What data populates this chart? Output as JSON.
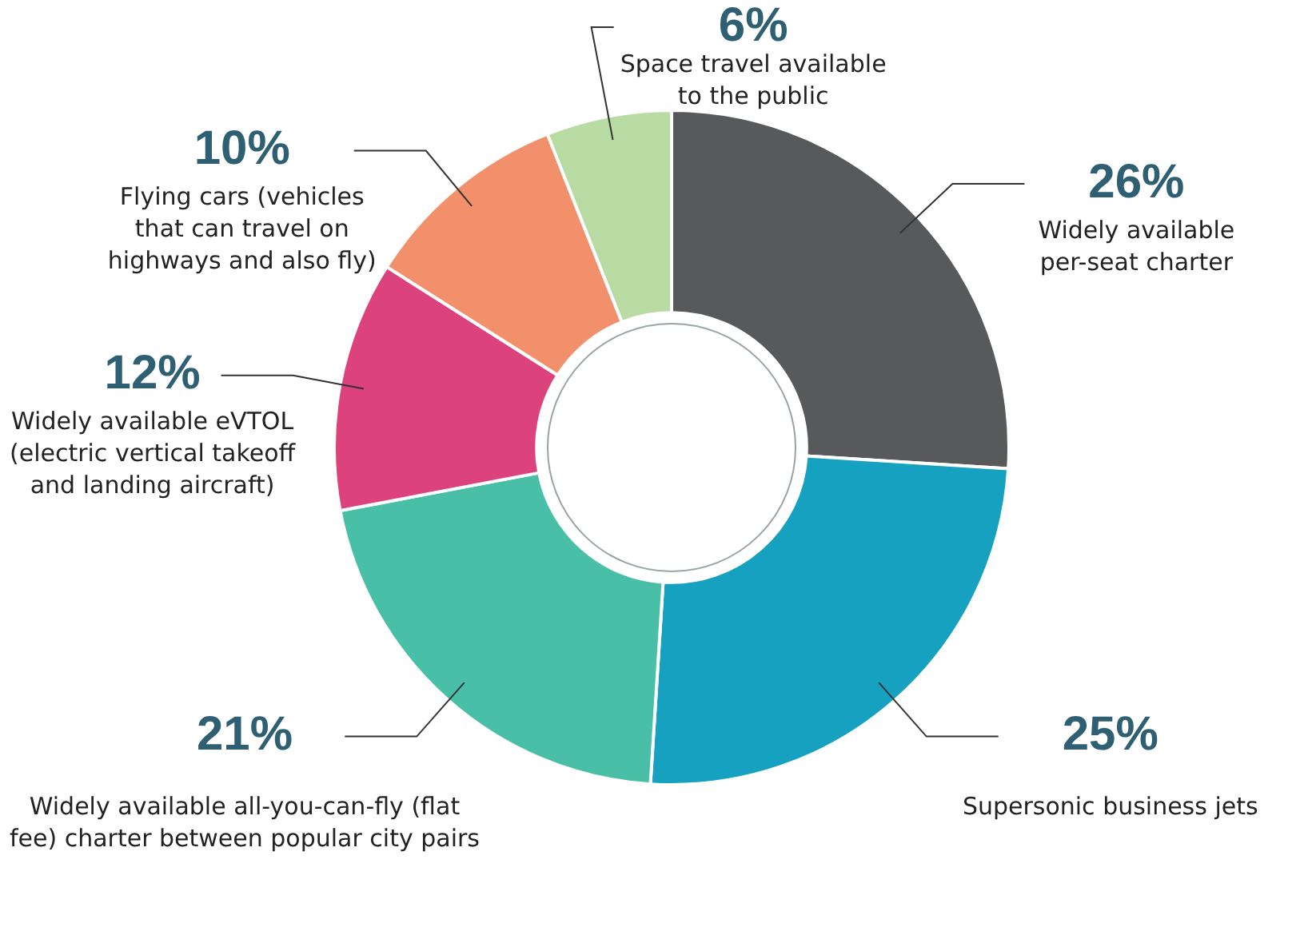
{
  "chart_data": {
    "type": "donut",
    "categories": [
      "Widely available per-seat charter",
      "Supersonic business jets",
      "Widely available all-you-can-fly (flat fee) charter between popular city pairs",
      "Widely available eVTOL (electric vertical takeoff and landing aircraft)",
      "Flying cars (vehicles that can travel on highways and also fly)",
      "Space travel available to the public"
    ],
    "values": [
      26,
      25,
      21,
      12,
      10,
      6
    ],
    "colors": [
      "#58595b",
      "#16a1c1",
      "#4abfa8",
      "#dc437c",
      "#f2906b",
      "#b8dba4"
    ],
    "value_labels": [
      "26%",
      "25%",
      "21%",
      "12%",
      "10%",
      "6%"
    ],
    "legend": false
  }
}
